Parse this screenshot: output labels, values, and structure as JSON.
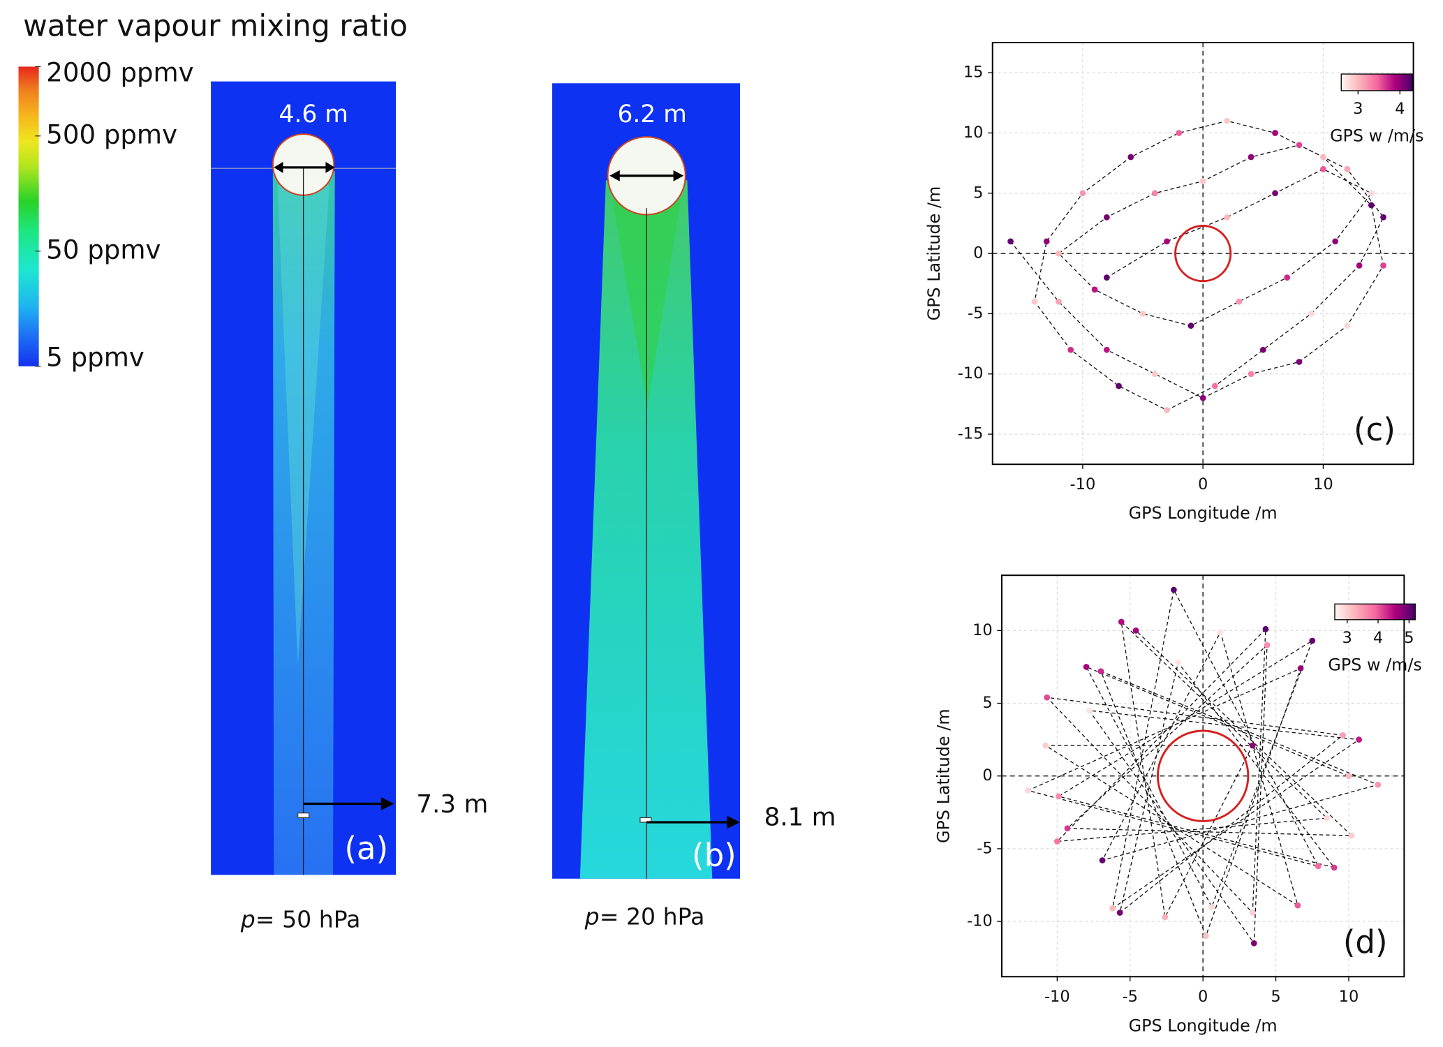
{
  "title": "water vapour mixing ratio",
  "colorbar": {
    "ticks": [
      {
        "value": 2000,
        "label": "2000 ppmv"
      },
      {
        "value": 500,
        "label": "500 ppmv"
      },
      {
        "value": 50,
        "label": "50 ppmv"
      },
      {
        "value": 5,
        "label": "5 ppmv"
      }
    ],
    "lim": [
      5,
      2000
    ],
    "log_scale": true
  },
  "panels": [
    {
      "diameter_label": "4.6 m",
      "offset_label": "7.3 m",
      "panel_label": "(a)",
      "pressure_symbol": "p",
      "pressure": "= 50 hPa"
    },
    {
      "diameter_label": "6.2 m",
      "offset_label": "8.1 m",
      "panel_label": "(b)",
      "pressure_symbol": "p",
      "pressure": "= 20 hPa"
    }
  ],
  "chart_data": [
    {
      "type": "scatter",
      "panel_label": "(c)",
      "xlabel": "GPS Longitude /m",
      "ylabel": "GPS Latitude /m",
      "xlim": [
        -17.5,
        17.5
      ],
      "ylim": [
        -17.5,
        17.5
      ],
      "xticks": [
        -10,
        0,
        10
      ],
      "yticks": [
        -15,
        -10,
        -5,
        0,
        5,
        10,
        15
      ],
      "grid": true,
      "zero_lines": true,
      "target_radius": 2.3,
      "target_color": "#d62020",
      "line_color": "#111111",
      "colorbar": {
        "label": "GPS w /m/s",
        "lim": [
          2.6,
          4.3
        ],
        "ticks": [
          3,
          4
        ],
        "colors": [
          "#fff7f3",
          "#fbb4b9",
          "#f768a1",
          "#ae017e",
          "#49006a"
        ]
      },
      "series": [
        {
          "x": [
            -16,
            -12,
            -8,
            -4,
            0,
            4,
            8,
            12,
            15,
            14,
            10,
            6,
            2,
            -2,
            -6,
            -10,
            -13,
            -14,
            -11,
            -7,
            -3,
            1,
            5,
            9,
            13,
            15,
            12,
            8,
            4,
            0,
            -4,
            -8,
            -12,
            -9,
            -5,
            -1,
            3,
            7,
            11,
            14,
            10,
            6,
            2,
            -3,
            -8
          ],
          "values": [
            1,
            -4,
            -8,
            -10,
            -12,
            -10,
            -9,
            -6,
            -1,
            4,
            8,
            10,
            11,
            10,
            8,
            5,
            1,
            -4,
            -8,
            -11,
            -13,
            -11,
            -8,
            -5,
            -1,
            3,
            7,
            9,
            8,
            6,
            5,
            3,
            0,
            -3,
            -5,
            -6,
            -4,
            -2,
            1,
            5,
            7,
            5,
            3,
            1,
            -2
          ],
          "w": [
            4.2,
            3.1,
            3.8,
            2.9,
            4.0,
            3.3,
            4.1,
            2.8,
            3.6,
            4.2,
            3.0,
            3.9,
            2.9,
            3.5,
            4.1,
            3.2,
            4.0,
            2.9,
            3.7,
            4.2,
            3.0,
            3.4,
            4.1,
            2.8,
            3.9,
            4.2,
            3.1,
            3.6,
            4.0,
            2.9,
            3.3,
            4.1,
            3.0,
            3.8,
            2.9,
            4.2,
            3.2,
            3.7,
            4.0,
            2.8,
            3.5,
            4.1,
            3.0,
            3.9,
            4.2
          ]
        }
      ]
    },
    {
      "type": "scatter",
      "panel_label": "(d)",
      "xlabel": "GPS Longitude /m",
      "ylabel": "GPS Latitude /m",
      "xlim": [
        -13.8,
        13.8
      ],
      "ylim": [
        -13.8,
        13.8
      ],
      "xticks": [
        -10,
        -5,
        0,
        5,
        10
      ],
      "yticks": [
        -10,
        -5,
        0,
        5,
        10
      ],
      "grid": true,
      "zero_lines": true,
      "target_radius": 3.1,
      "target_color": "#d62020",
      "line_color": "#111111",
      "colorbar": {
        "label": "GPS w /m/s",
        "lim": [
          2.6,
          5.2
        ],
        "ticks": [
          3,
          4,
          5
        ],
        "colors": [
          "#fff7f3",
          "#fbb4b9",
          "#f768a1",
          "#ae017e",
          "#49006a"
        ]
      },
      "series": [
        {
          "x": [
            10,
            -8.0,
            0.6,
            7.5,
            -9.9,
            9.0,
            -1.7,
            -5.7,
            9.6,
            -10.7,
            3.4,
            4.3,
            -10.0,
            8.5,
            -5.6,
            -2.6,
            3.4,
            -10.8,
            6.5,
            1.2,
            -6.9,
            12.0,
            -7.0,
            0.2,
            6.7,
            -12.0,
            7.9,
            -2.0,
            -6.2,
            10.7,
            -7.8,
            3.5,
            4.4,
            -9.3,
            10.2,
            -4.6
          ],
          "values": [
            0,
            7.5,
            -9.0,
            9.3,
            -1.4,
            -6.3,
            7.8,
            -9.4,
            2.8,
            5.4,
            -9.4,
            10.1,
            -4.5,
            -2.9,
            10.6,
            -9.7,
            2.1,
            2.1,
            -8.9,
            9.9,
            -5.8,
            -0.6,
            7.2,
            -11.0,
            7.4,
            -1.0,
            -6.2,
            12.8,
            -9.1,
            2.5,
            4.5,
            -11.5,
            9.0,
            -3.6,
            -4.1,
            10.0
          ],
          "w": [
            3.2,
            4.6,
            2.9,
            5.0,
            3.6,
            4.2,
            2.8,
            4.9,
            3.4,
            4.1,
            3.0,
            5.1,
            3.8,
            2.9,
            4.5,
            3.3,
            4.8,
            3.0,
            4.0,
            2.8,
            5.0,
            3.5,
            4.3,
            3.1,
            4.7,
            2.9,
            3.9,
            5.1,
            3.2,
            4.4,
            2.8,
            4.9,
            3.6,
            4.2,
            3.0,
            4.6
          ]
        }
      ]
    }
  ]
}
